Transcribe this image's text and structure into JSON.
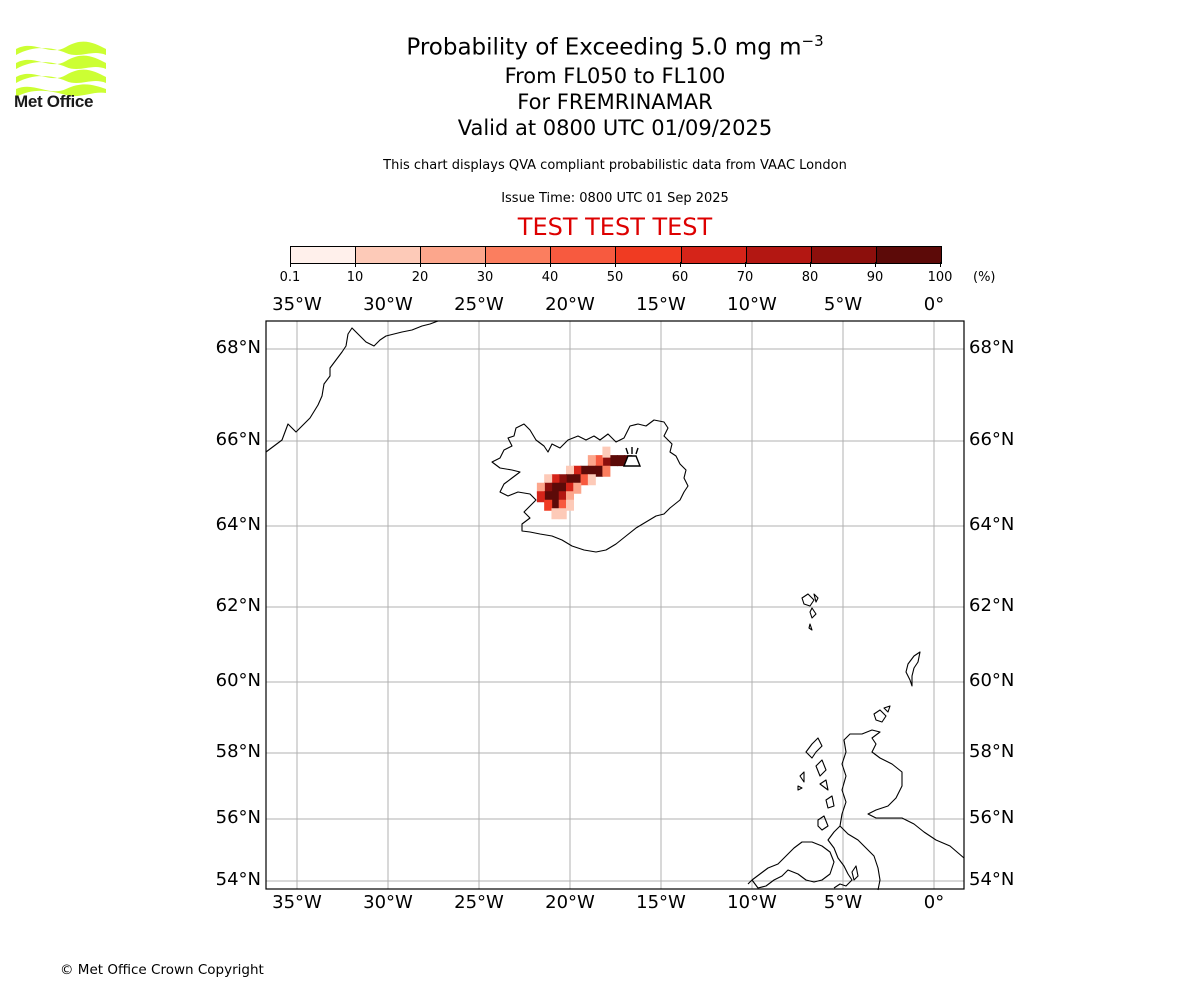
{
  "branding": {
    "logo_text": "Met Office",
    "logo_color": "#ccff33",
    "copyright": "© Met Office Crown Copyright"
  },
  "title": {
    "line1": "Probability of Exceeding 5.0 mg m",
    "line1_superscript": "−3",
    "line2": "From FL050 to FL100",
    "line3": "For FREMRINAMAR",
    "line4": "Valid at 0800 UTC 01/09/2025"
  },
  "subtitle": "This chart displays QVA compliant probabilistic data from VAAC London",
  "issue_time": "Issue Time: 0800 UTC 01 Sep 2025",
  "test_banner": "TEST TEST TEST",
  "colorbar": {
    "unit": "(%)",
    "tick_labels": [
      "0.1",
      "10",
      "20",
      "30",
      "40",
      "50",
      "60",
      "70",
      "80",
      "90",
      "100"
    ],
    "colors": [
      "#fff0eb",
      "#fdcab8",
      "#fca68c",
      "#fb7e5f",
      "#f75a3f",
      "#f03b22",
      "#d52419",
      "#b31712",
      "#8c0f0c",
      "#5c0a08"
    ]
  },
  "map": {
    "projection_area": "North Atlantic / Iceland / Scotland",
    "lon_labels": [
      "35°W",
      "30°W",
      "25°W",
      "20°W",
      "15°W",
      "10°W",
      "5°W",
      "0°"
    ],
    "lat_labels": [
      "68°N",
      "66°N",
      "64°N",
      "62°N",
      "60°N",
      "58°N",
      "56°N",
      "54°N"
    ],
    "volcano_symbol": "volcano-icon",
    "coastline_color": "#000000",
    "gridline_color": "#b0b0b0"
  },
  "probability_field": {
    "description_units": "%",
    "grid_cells": [
      {
        "lon": -17.6,
        "lat": 65.55,
        "p": 95
      },
      {
        "lon": -17.2,
        "lat": 65.55,
        "p": 95
      },
      {
        "lon": -16.8,
        "lat": 65.55,
        "p": 95
      },
      {
        "lon": -18.0,
        "lat": 65.55,
        "p": 80
      },
      {
        "lon": -18.4,
        "lat": 65.55,
        "p": 40
      },
      {
        "lon": -18.8,
        "lat": 65.55,
        "p": 20
      },
      {
        "lon": -18.0,
        "lat": 65.75,
        "p": 10
      },
      {
        "lon": -18.4,
        "lat": 65.3,
        "p": 90
      },
      {
        "lon": -18.8,
        "lat": 65.3,
        "p": 95
      },
      {
        "lon": -19.2,
        "lat": 65.3,
        "p": 90
      },
      {
        "lon": -19.6,
        "lat": 65.3,
        "p": 60
      },
      {
        "lon": -18.0,
        "lat": 65.3,
        "p": 30
      },
      {
        "lon": -20.0,
        "lat": 65.3,
        "p": 15
      },
      {
        "lon": -19.6,
        "lat": 65.1,
        "p": 95
      },
      {
        "lon": -20.0,
        "lat": 65.1,
        "p": 95
      },
      {
        "lon": -20.4,
        "lat": 65.1,
        "p": 85
      },
      {
        "lon": -19.2,
        "lat": 65.1,
        "p": 40
      },
      {
        "lon": -18.8,
        "lat": 65.1,
        "p": 15
      },
      {
        "lon": -20.8,
        "lat": 65.1,
        "p": 60
      },
      {
        "lon": -21.2,
        "lat": 65.1,
        "p": 15
      },
      {
        "lon": -20.4,
        "lat": 64.9,
        "p": 95
      },
      {
        "lon": -20.8,
        "lat": 64.9,
        "p": 95
      },
      {
        "lon": -21.2,
        "lat": 64.9,
        "p": 80
      },
      {
        "lon": -20.0,
        "lat": 64.9,
        "p": 60
      },
      {
        "lon": -19.6,
        "lat": 64.9,
        "p": 25
      },
      {
        "lon": -21.6,
        "lat": 64.9,
        "p": 20
      },
      {
        "lon": -21.2,
        "lat": 64.7,
        "p": 95
      },
      {
        "lon": -20.8,
        "lat": 64.7,
        "p": 95
      },
      {
        "lon": -20.4,
        "lat": 64.7,
        "p": 75
      },
      {
        "lon": -20.0,
        "lat": 64.7,
        "p": 20
      },
      {
        "lon": -21.6,
        "lat": 64.7,
        "p": 60
      },
      {
        "lon": -20.8,
        "lat": 64.5,
        "p": 95
      },
      {
        "lon": -21.2,
        "lat": 64.5,
        "p": 55
      },
      {
        "lon": -20.4,
        "lat": 64.5,
        "p": 45
      },
      {
        "lon": -20.0,
        "lat": 64.5,
        "p": 15
      },
      {
        "lon": -20.4,
        "lat": 64.3,
        "p": 10
      },
      {
        "lon": -20.8,
        "lat": 64.3,
        "p": 10
      }
    ]
  }
}
